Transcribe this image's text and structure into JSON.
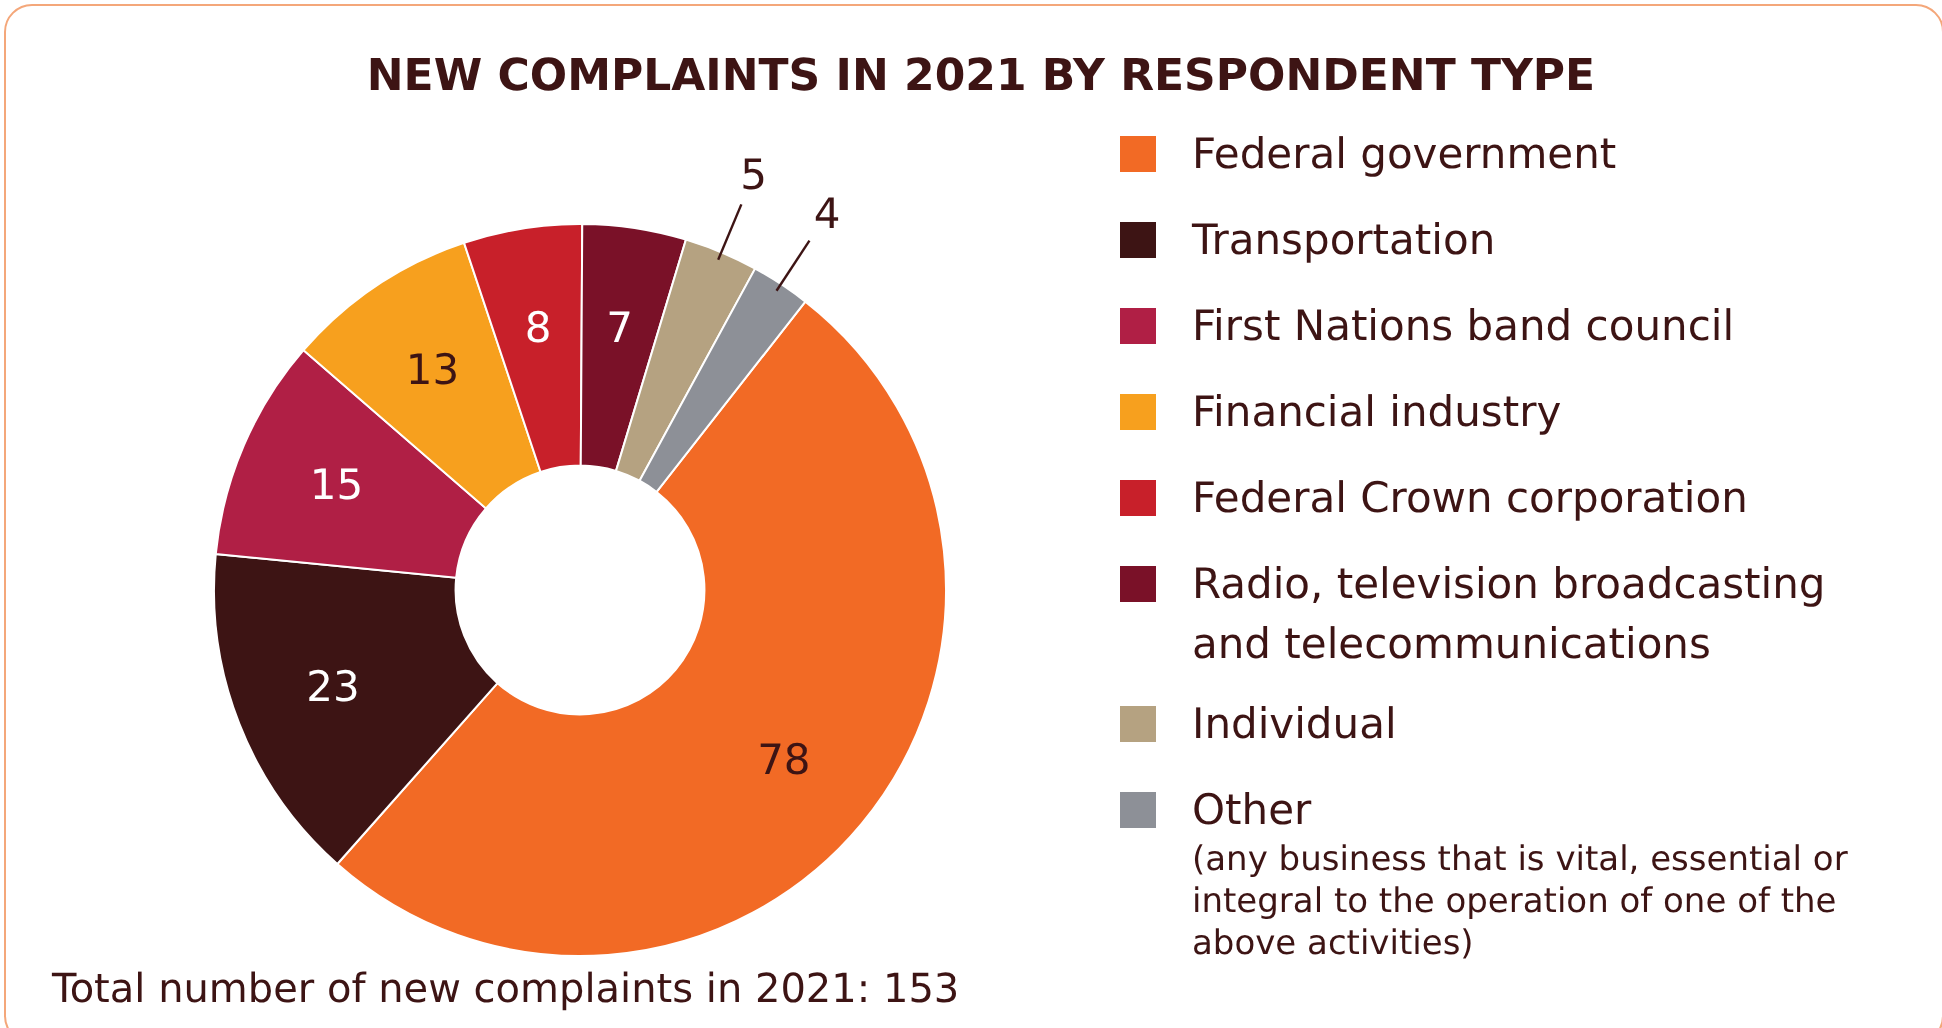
{
  "chart_data": {
    "type": "donut",
    "title": "NEW COMPLAINTS IN 2021 BY RESPONDENT TYPE",
    "categories": [
      "Federal government",
      "Transportation",
      "First Nations band council",
      "Financial industry",
      "Federal Crown corporation",
      "Radio, television broadcasting and telecommunications",
      "Individual",
      "Other"
    ],
    "values": [
      78,
      23,
      15,
      13,
      8,
      7,
      5,
      4
    ],
    "colors": [
      "#f26a25",
      "#3d1414",
      "#b01f45",
      "#f7a01e",
      "#c8202a",
      "#7a1128",
      "#b5a281",
      "#8d9097"
    ],
    "data_labels": true,
    "legend": "right",
    "annotations": [
      "(any business that is vital, essential or integral to the operation of one of the above activities)",
      "Total number of new complaints in 2021: 153"
    ]
  }
}
